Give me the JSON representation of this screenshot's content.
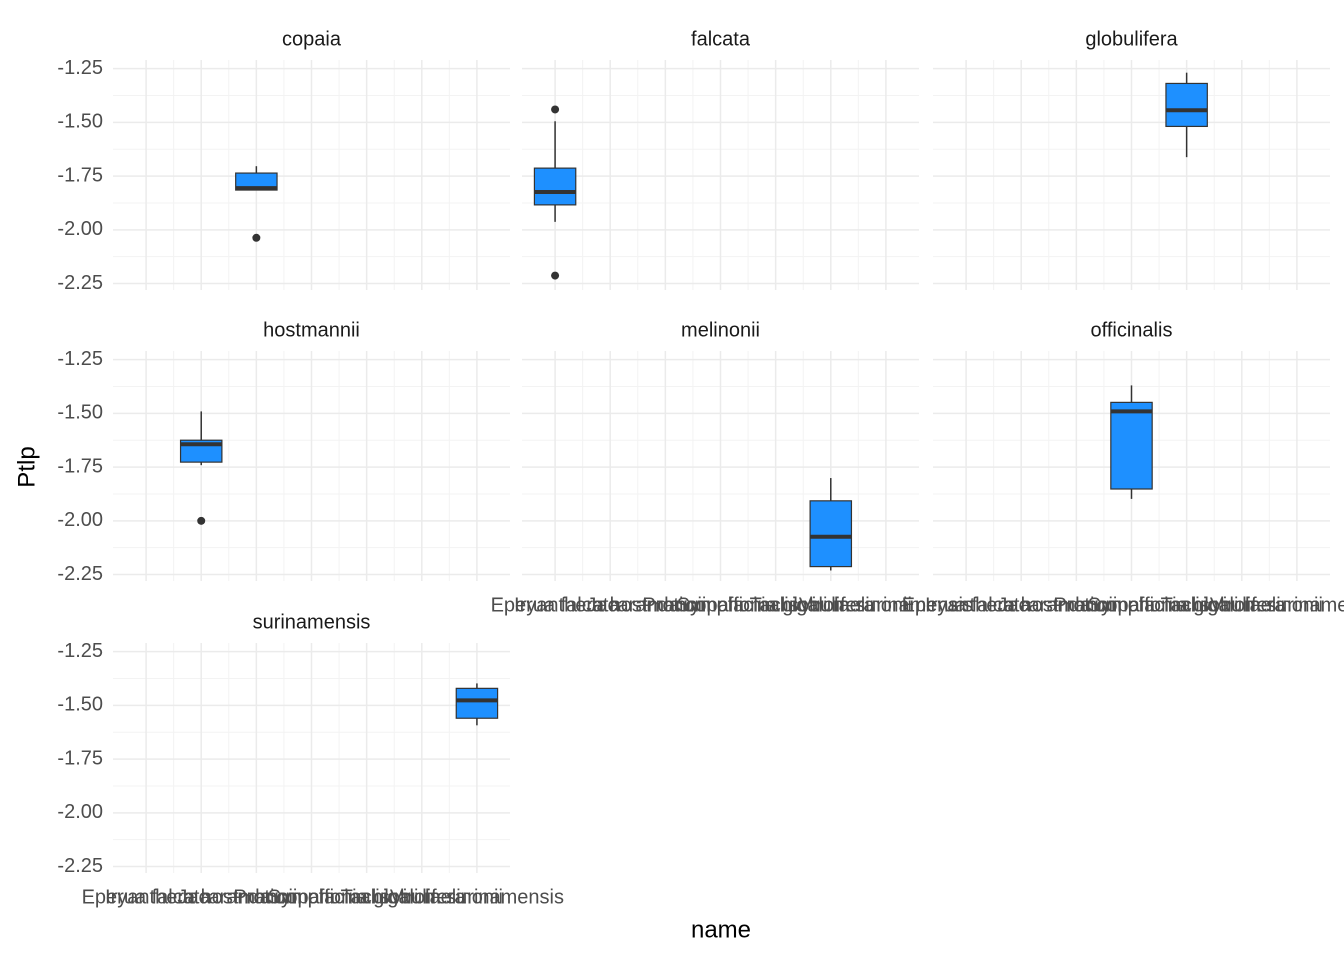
{
  "chart_data": {
    "type": "box",
    "x_label": "name",
    "y_label": "Ptlp",
    "color": "#1e90ff",
    "grid": true,
    "categories": [
      "Eperua falcata",
      "Iryanthera hostmannii",
      "Jacaranda copaia",
      "Protium officinalis",
      "Symphonia globulifera",
      "Tachigali melinonii",
      "Virola surinamensis"
    ],
    "ylim": [
      -2.28,
      -1.21
    ],
    "yticks": [
      -1.25,
      {
        "value": -1.5,
        "label": "-1.50"
      },
      -1.75,
      {
        "value": -2,
        "label": "-2.00"
      },
      -2.25
    ],
    "facets": [
      {
        "title": "copaia",
        "category": "Jacaranda copaia",
        "box": {
          "min": -1.815,
          "q1": -1.815,
          "median": -1.806,
          "q3": -1.736,
          "max": -1.704
        },
        "outliers": [
          -2.037
        ]
      },
      {
        "title": "falcata",
        "category": "Eperua falcata",
        "box": {
          "min": -1.963,
          "q1": -1.884,
          "median": -1.824,
          "q3": -1.713,
          "max": -1.495
        },
        "outliers": [
          -1.44,
          -2.213
        ]
      },
      {
        "title": "globulifera",
        "category": "Symphonia globulifera",
        "box": {
          "min": -1.662,
          "q1": -1.519,
          "median": -1.444,
          "q3": -1.319,
          "max": -1.269
        },
        "outliers": []
      },
      {
        "title": "hostmannii",
        "category": "Iryanthera hostmannii",
        "box": {
          "min": -1.741,
          "q1": -1.727,
          "median": -1.644,
          "q3": -1.625,
          "max": -1.491
        },
        "outliers": [
          -2.0
        ]
      },
      {
        "title": "melinonii",
        "category": "Tachigali melinonii",
        "box": {
          "min": -2.231,
          "q1": -2.213,
          "median": -2.074,
          "q3": -1.907,
          "max": -1.801
        },
        "outliers": []
      },
      {
        "title": "officinalis",
        "category": "Protium officinalis",
        "box": {
          "min": -1.898,
          "q1": -1.852,
          "median": -1.491,
          "q3": -1.449,
          "max": -1.37
        },
        "outliers": []
      },
      {
        "title": "surinamensis",
        "category": "Virola surinamensis",
        "box": {
          "min": -1.593,
          "q1": -1.56,
          "median": -1.477,
          "q3": -1.421,
          "max": -1.398
        },
        "outliers": []
      }
    ]
  }
}
